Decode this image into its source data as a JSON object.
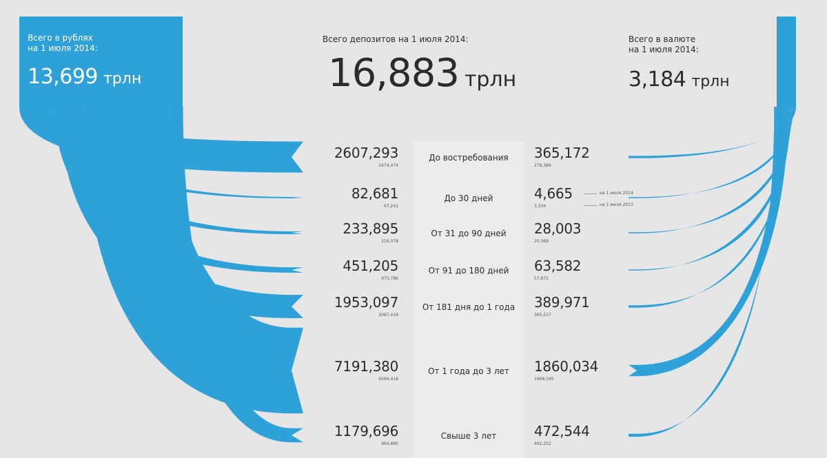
{
  "header": {
    "rub_title_line1": "Всего в рублях",
    "rub_title_line2": "на 1 июля 2014:",
    "rub_total": "13,699",
    "total_title": "Всего депозитов на 1 июля 2014:",
    "total": "16,883",
    "fx_title_line1": "Всего в валюте",
    "fx_title_line2": "на 1 июля 2014:",
    "fx_total": "3,184",
    "unit": "трлн"
  },
  "legend": {
    "current": "на 1 июля 2014",
    "previous": "на 1 июля 2013"
  },
  "colors": {
    "accent": "#2ea1d8",
    "background": "#e6e6e6",
    "text": "#2b2b2b"
  },
  "chart_data": {
    "type": "sankey",
    "sources": [
      {
        "name": "Всего в рублях на 1 июля 2014:",
        "value": 13.699
      },
      {
        "name": "Всего в валюте на 1 июля 2014:",
        "value": 3.184
      }
    ],
    "total": 16.883,
    "categories": [
      "До востребования",
      "До 30 дней",
      "От 31 до 90 дней",
      "От 91 до 180 дней",
      "От 181 дня до 1 года",
      "От 1 года до 3 лет",
      "Свыше 3 лет"
    ],
    "series": [
      {
        "name": "на 1 июля 2014",
        "currency": "rub",
        "values": [
          2607.293,
          82.681,
          233.895,
          451.205,
          1953.097,
          7191.38,
          1179.696
        ]
      },
      {
        "name": "на 1 июля 2013",
        "currency": "rub",
        "values": [
          2474.474,
          67.241,
          216.078,
          475.786,
          2067.418,
          6564.418,
          964.89
        ]
      },
      {
        "name": "на 1 июля 2014",
        "currency": "fx",
        "values": [
          365.172,
          4.665,
          28.003,
          63.582,
          389.971,
          1860.034,
          472.544
        ]
      },
      {
        "name": "на 1 июля 2013",
        "currency": "fx",
        "values": [
          276.386,
          3.334,
          20.369,
          57.671,
          365.537,
          1668.165,
          492.252
        ]
      }
    ],
    "rows": [
      {
        "category": "До востребования",
        "rub": "2607,293",
        "rub_prev": "2474,474",
        "fx": "365,172",
        "fx_prev": "276,386"
      },
      {
        "category": "До 30 дней",
        "rub": "82,681",
        "rub_prev": "67,241",
        "fx": "4,665",
        "fx_prev": "3,334"
      },
      {
        "category": "От 31 до 90 дней",
        "rub": "233,895",
        "rub_prev": "216,078",
        "fx": "28,003",
        "fx_prev": "20,369"
      },
      {
        "category": "От 91 до 180 дней",
        "rub": "451,205",
        "rub_prev": "475,786",
        "fx": "63,582",
        "fx_prev": "57,671"
      },
      {
        "category": "От 181 дня до 1 года",
        "rub": "1953,097",
        "rub_prev": "2067,418",
        "fx": "389,971",
        "fx_prev": "365,537"
      },
      {
        "category": "От 1 года до 3 лет",
        "rub": "7191,380",
        "rub_prev": "6564,418",
        "fx": "1860,034",
        "fx_prev": "1668,165"
      },
      {
        "category": "Свыше 3 лет",
        "rub": "1179,696",
        "rub_prev": "964,890",
        "fx": "472,544",
        "fx_prev": "492,252"
      }
    ]
  }
}
